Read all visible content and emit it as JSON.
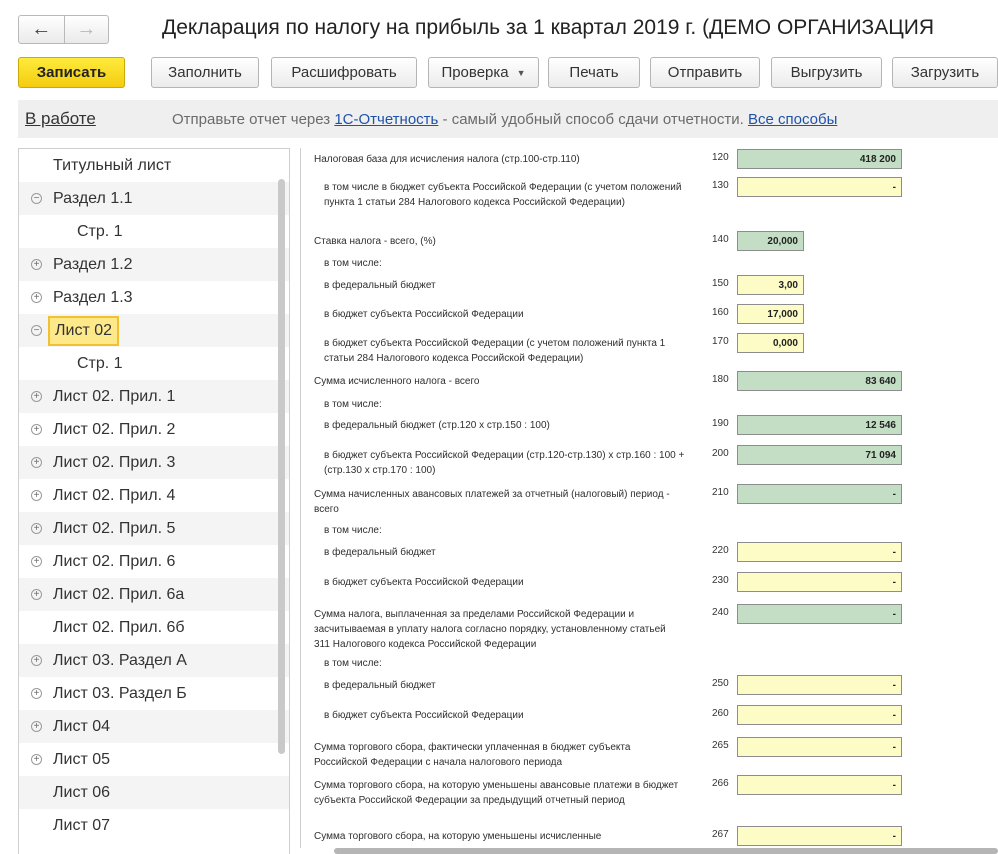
{
  "nav": {
    "back_icon": "←",
    "forward_icon": "→"
  },
  "title": "Декларация по налогу на прибыль за 1 квартал 2019 г. (ДЕМО ОРГАНИЗАЦИЯ",
  "toolbar": {
    "save": "Записать",
    "fill": "Заполнить",
    "decode": "Расшифровать",
    "check": "Проверка",
    "check_caret": "▼",
    "print": "Печать",
    "send": "Отправить",
    "export": "Выгрузить",
    "import": "Загрузить"
  },
  "status": {
    "state": "В работе",
    "message_before": "Отправьте отчет через ",
    "message_link": "1С-Отчетность",
    "message_after": " - самый удобный способ сдачи отчетности. ",
    "all_methods": "Все способы"
  },
  "colors": {
    "accent": "#f3cc11",
    "field_green": "#c3dec5",
    "field_yellow": "#fdfbc6",
    "link": "#2052a8"
  },
  "sidebar": {
    "items": [
      {
        "label": "Титульный лист",
        "toggle": ""
      },
      {
        "label": "Раздел 1.1",
        "toggle": "−"
      },
      {
        "label": "Стр. 1",
        "toggle": ""
      },
      {
        "label": "Раздел 1.2",
        "toggle": "+"
      },
      {
        "label": "Раздел 1.3",
        "toggle": "+"
      },
      {
        "label": "Лист 02",
        "toggle": "−"
      },
      {
        "label": "Стр. 1",
        "toggle": ""
      },
      {
        "label": "Лист 02. Прил. 1",
        "toggle": "+"
      },
      {
        "label": "Лист 02. Прил. 2",
        "toggle": "+"
      },
      {
        "label": "Лист 02. Прил. 3",
        "toggle": "+"
      },
      {
        "label": "Лист 02. Прил. 4",
        "toggle": "+"
      },
      {
        "label": "Лист 02. Прил. 5",
        "toggle": "+"
      },
      {
        "label": "Лист 02. Прил. 6",
        "toggle": "+"
      },
      {
        "label": "Лист 02. Прил. 6а",
        "toggle": "+"
      },
      {
        "label": "Лист 02. Прил. 6б",
        "toggle": ""
      },
      {
        "label": "Лист 03. Раздел А",
        "toggle": "+"
      },
      {
        "label": "Лист 03. Раздел Б",
        "toggle": "+"
      },
      {
        "label": "Лист 04",
        "toggle": "+"
      },
      {
        "label": "Лист 05",
        "toggle": "+"
      },
      {
        "label": "Лист 06",
        "toggle": ""
      },
      {
        "label": "Лист 07",
        "toggle": ""
      }
    ]
  },
  "form": {
    "rows": [
      {
        "label": "Налоговая база для исчисления налога (стр.100-стр.110)",
        "code": "120",
        "value": "418 200"
      },
      {
        "label": "в том числе в бюджет субъекта Российской Федерации (с учетом положений пункта 1 статьи 284 Налогового кодекса Российской Федерации)",
        "code": "130",
        "value": "-"
      },
      {
        "label": "Ставка налога - всего, (%)",
        "code": "140",
        "value": "20,000"
      },
      {
        "label": "в том числе:"
      },
      {
        "label": "в федеральный бюджет",
        "code": "150",
        "value": "3,00"
      },
      {
        "label": "в бюджет субъекта Российской Федерации",
        "code": "160",
        "value": "17,000"
      },
      {
        "label": "в бюджет субъекта Российской Федерации (с учетом положений пункта 1 статьи 284 Налогового кодекса Российской Федерации)",
        "code": "170",
        "value": "0,000"
      },
      {
        "label": "Сумма исчисленного налога - всего",
        "code": "180",
        "value": "83 640"
      },
      {
        "label": "в том числе:"
      },
      {
        "label": "в федеральный бюджет (стр.120 x стр.150 : 100)",
        "code": "190",
        "value": "12 546"
      },
      {
        "label": "в бюджет субъекта Российской Федерации (стр.120-стр.130) x стр.160 : 100 + (стр.130 x стр.170 : 100)",
        "code": "200",
        "value": "71 094"
      },
      {
        "label": "Сумма начисленных авансовых платежей за отчетный (налоговый) период - всего",
        "code": "210",
        "value": "-"
      },
      {
        "label": "в том числе:"
      },
      {
        "label": "в федеральный бюджет",
        "code": "220",
        "value": "-"
      },
      {
        "label": "в бюджет субъекта Российской Федерации",
        "code": "230",
        "value": "-"
      },
      {
        "label": "Сумма налога, выплаченная за пределами Российской Федерации и засчитываемая в уплату налога согласно порядку, установленному статьей 311 Налогового кодекса Российской Федерации",
        "code": "240",
        "value": "-"
      },
      {
        "label": "в том числе:"
      },
      {
        "label": "в федеральный бюджет",
        "code": "250",
        "value": "-"
      },
      {
        "label": "в бюджет субъекта Российской Федерации",
        "code": "260",
        "value": "-"
      },
      {
        "label": "Сумма торгового сбора, фактически уплаченная в бюджет субъекта Российской Федерации с начала налогового периода",
        "code": "265",
        "value": "-"
      },
      {
        "label": "Сумма торгового сбора, на которую уменьшены авансовые платежи в бюджет субъекта Российской Федерации за предыдущий отчетный период",
        "code": "266",
        "value": "-"
      },
      {
        "label": "Сумма торгового сбора, на которую уменьшены исчисленные",
        "code": "267",
        "value": "-"
      }
    ]
  }
}
